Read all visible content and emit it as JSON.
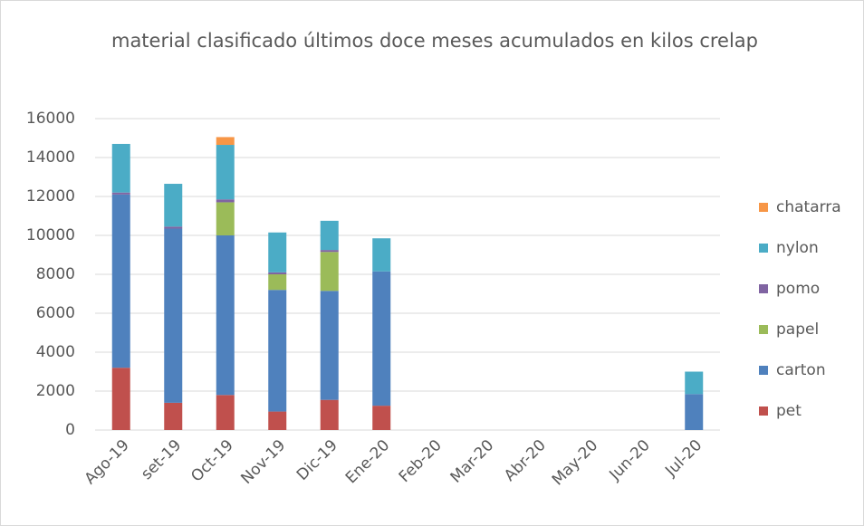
{
  "chart_data": {
    "type": "stacked_bar",
    "title": "material clasificado últimos doce meses acumulados en kilos crelap",
    "categories": [
      "Ago-19",
      "set-19",
      "Oct-19",
      "Nov-19",
      "Dic-19",
      "Ene-20",
      "Feb-20",
      "Mar-20",
      "Abr-20",
      "May-20",
      "Jun-20",
      "Jul-20"
    ],
    "series": [
      {
        "name": "pet",
        "color": "#c0504d",
        "values": [
          3200,
          1400,
          1800,
          950,
          1550,
          1250,
          0,
          0,
          0,
          0,
          0,
          0
        ]
      },
      {
        "name": "carton",
        "color": "#4f81bd",
        "values": [
          8900,
          8950,
          8200,
          6250,
          5600,
          6900,
          0,
          0,
          0,
          0,
          0,
          1850
        ]
      },
      {
        "name": "papel",
        "color": "#9bbb59",
        "values": [
          0,
          0,
          1700,
          800,
          2000,
          0,
          0,
          0,
          0,
          0,
          0,
          0
        ]
      },
      {
        "name": "pomo",
        "color": "#8064a2",
        "values": [
          100,
          100,
          150,
          100,
          100,
          0,
          0,
          0,
          0,
          0,
          0,
          0
        ]
      },
      {
        "name": "nylon",
        "color": "#4bacc6",
        "values": [
          2500,
          2200,
          2800,
          2050,
          1500,
          1700,
          0,
          0,
          0,
          0,
          0,
          1150
        ]
      },
      {
        "name": "chatarra",
        "color": "#f79646",
        "values": [
          0,
          0,
          400,
          0,
          0,
          0,
          0,
          0,
          0,
          0,
          0,
          0
        ]
      }
    ],
    "ylim": [
      0,
      16000
    ],
    "yticks": [
      0,
      2000,
      4000,
      6000,
      8000,
      10000,
      12000,
      14000,
      16000
    ],
    "grid": true,
    "legend": "right"
  }
}
